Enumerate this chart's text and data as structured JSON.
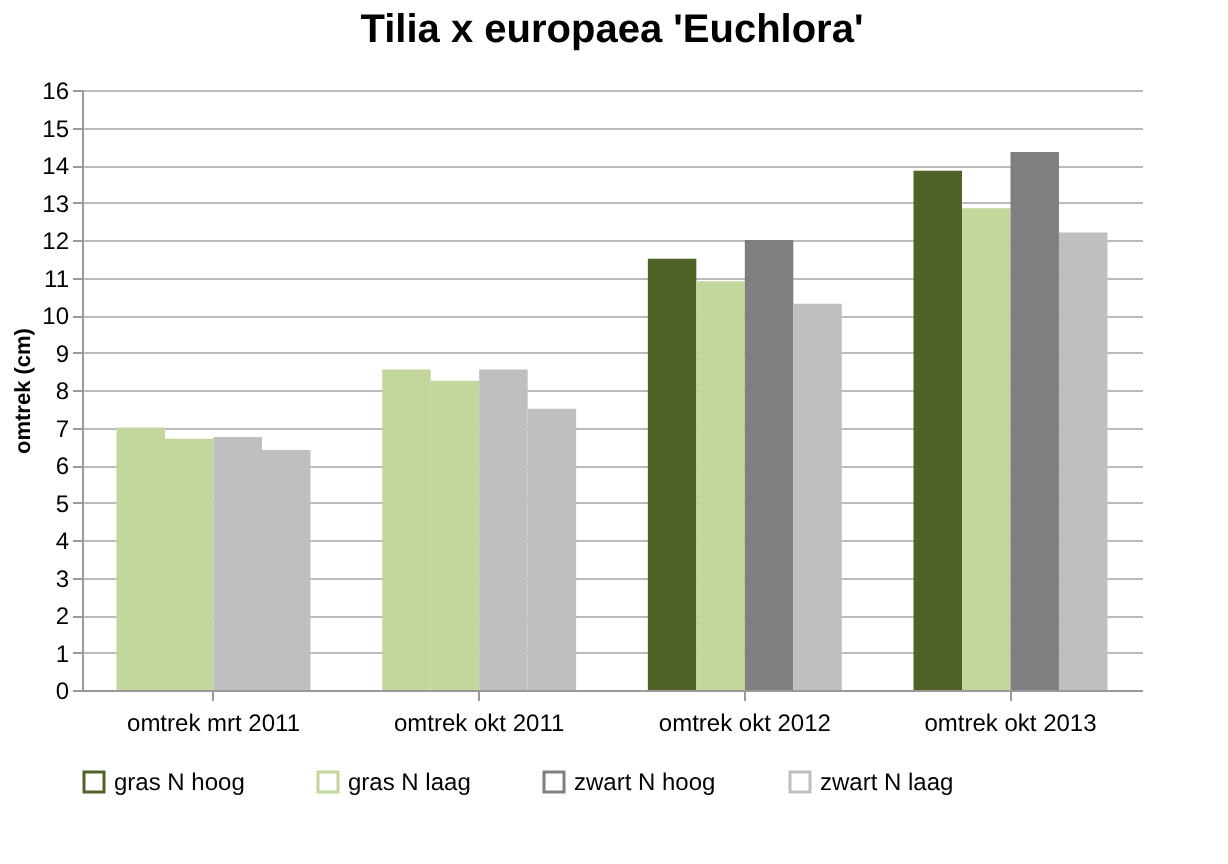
{
  "chart_data": {
    "type": "bar",
    "title": "Tilia x europaea 'Euchlora'",
    "ylabel": "omtrek (cm)",
    "categories": [
      "omtrek mrt 2011",
      "omtrek okt 2011",
      "omtrek okt 2012",
      "omtrek okt 2013"
    ],
    "series": [
      {
        "name": "gras N  hoog",
        "color": "#4f6228",
        "colors": [
          "#c3d69b",
          "#c3d69b",
          "#4f6228",
          "#4f6228"
        ],
        "values": [
          7.0,
          8.55,
          11.5,
          13.85
        ]
      },
      {
        "name": "gras N  laag",
        "color": "#c3d69b",
        "values": [
          6.7,
          8.25,
          10.9,
          12.85
        ]
      },
      {
        "name": "zwart N  hoog",
        "color": "#7f7f7f",
        "colors": [
          "#bfbfbf",
          "#bfbfbf",
          "#7f7f7f",
          "#7f7f7f"
        ],
        "values": [
          6.75,
          8.55,
          12.0,
          14.35
        ]
      },
      {
        "name": "zwart N  laag",
        "color": "#bfbfbf",
        "values": [
          6.4,
          7.5,
          10.3,
          12.2
        ]
      }
    ],
    "ylim": [
      0,
      16
    ],
    "yticks": [
      0,
      1,
      2,
      3,
      4,
      5,
      6,
      7,
      8,
      9,
      10,
      11,
      12,
      13,
      14,
      15,
      16
    ],
    "grid": "y",
    "legend": "bottom"
  }
}
